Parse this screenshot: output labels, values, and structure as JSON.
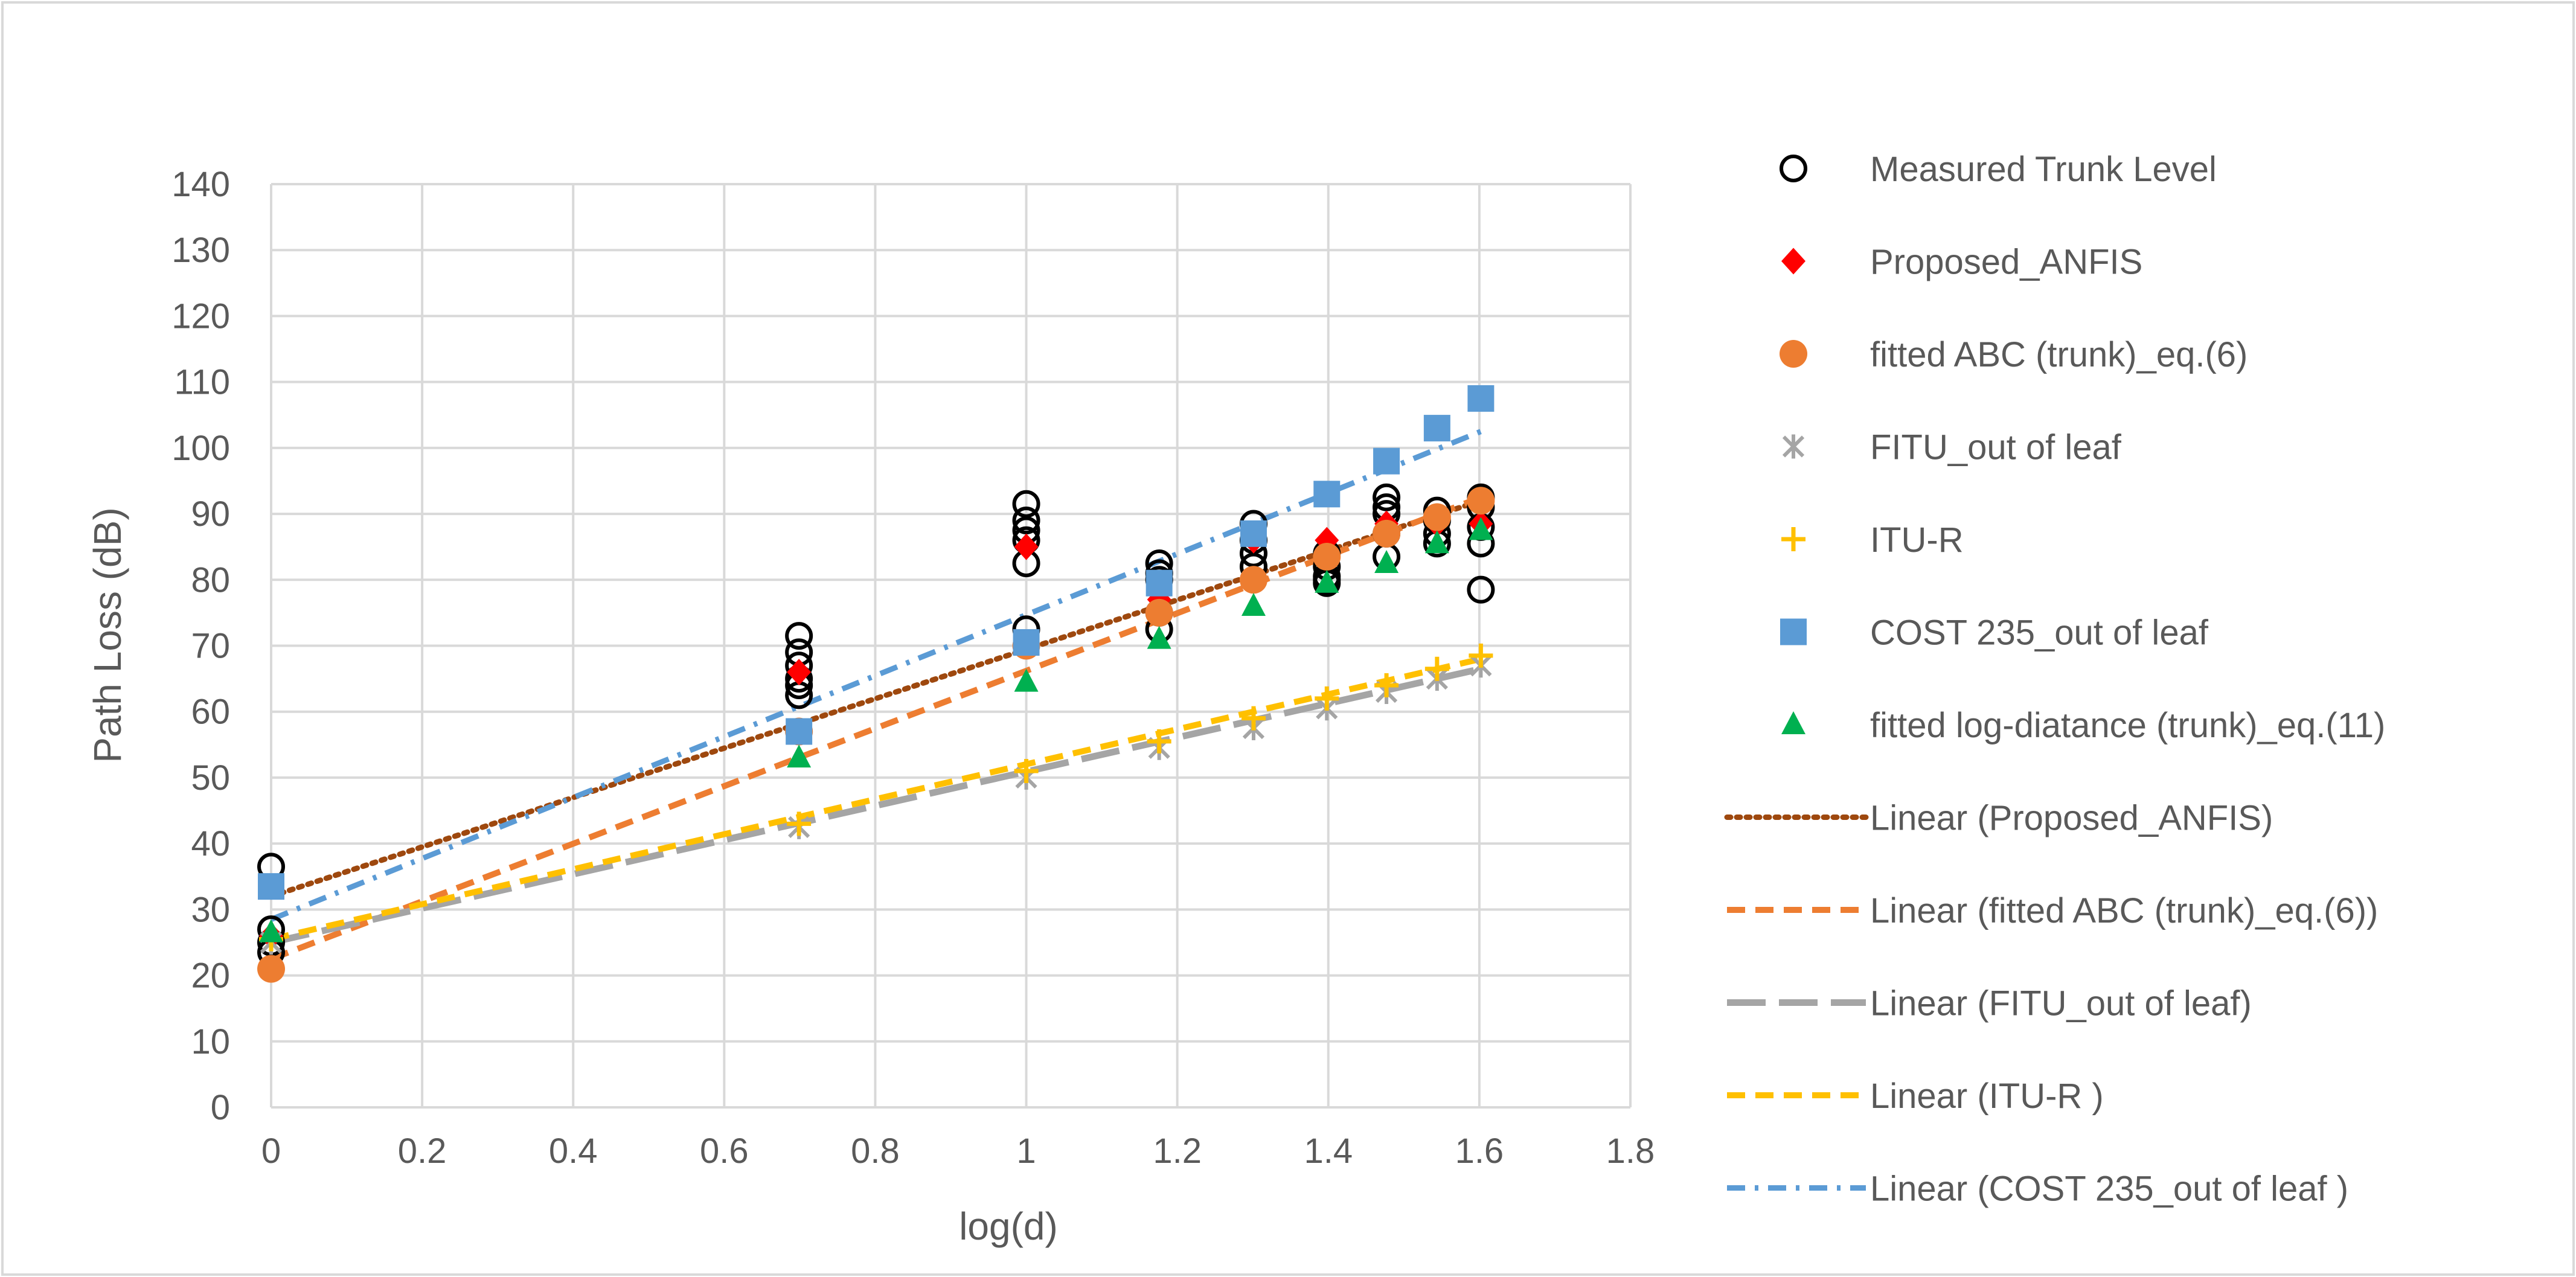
{
  "chart_data": {
    "type": "scatter",
    "xlabel": "log(d)",
    "ylabel": "Path Loss (dB)",
    "xlim": [
      0,
      1.8
    ],
    "ylim": [
      0,
      140
    ],
    "x_ticks": [
      0,
      0.2,
      0.4,
      0.6,
      0.8,
      1,
      1.2,
      1.4,
      1.6,
      1.8
    ],
    "x_tick_labels": [
      "0",
      "0.2",
      "0.4",
      "0.6",
      "0.8",
      "1",
      "1.2",
      "1.4",
      "1.6",
      "1.8"
    ],
    "y_ticks": [
      0,
      10,
      20,
      30,
      40,
      50,
      60,
      70,
      80,
      90,
      100,
      110,
      120,
      130,
      140
    ],
    "y_tick_labels": [
      "0",
      "10",
      "20",
      "30",
      "40",
      "50",
      "60",
      "70",
      "80",
      "90",
      "100",
      "110",
      "120",
      "130",
      "140"
    ],
    "grid": true,
    "legend_position": "right",
    "series": [
      {
        "name": "Measured Trunk Level",
        "marker": "open-circle",
        "color": "#000000",
        "x": [
          0,
          0,
          0,
          0,
          0.699,
          0.699,
          0.699,
          0.699,
          0.699,
          0.699,
          1,
          1,
          1,
          1,
          1,
          1,
          1.176,
          1.176,
          1.176,
          1.176,
          1.176,
          1.301,
          1.301,
          1.301,
          1.301,
          1.398,
          1.398,
          1.398,
          1.398,
          1.398,
          1.477,
          1.477,
          1.477,
          1.477,
          1.477,
          1.544,
          1.544,
          1.544,
          1.544,
          1.602,
          1.602,
          1.602,
          1.602,
          1.602
        ],
        "y": [
          36.5,
          27,
          25,
          23.5,
          71.5,
          69,
          67,
          65,
          64,
          62.5,
          91.5,
          89,
          87.5,
          86,
          82.5,
          72.5,
          82.5,
          81,
          80,
          75,
          72.5,
          88.5,
          86,
          84,
          82,
          84,
          82,
          80.5,
          80,
          79.5,
          92.5,
          91,
          90,
          87,
          83.5,
          90.5,
          89,
          87,
          85.5,
          92.5,
          91,
          88,
          85.5,
          78.5
        ]
      },
      {
        "name": "Proposed_ANFIS",
        "marker": "diamond",
        "color": "#ff0000",
        "x": [
          0,
          0.699,
          1,
          1.176,
          1.301,
          1.398,
          1.477,
          1.544,
          1.602
        ],
        "y": [
          26,
          66,
          85,
          77,
          86,
          86,
          88.5,
          88.5,
          88.5
        ]
      },
      {
        "name": "fitted ABC (trunk)_eq.(6)",
        "marker": "circle",
        "color": "#ed7d31",
        "x": [
          0,
          0.699,
          1,
          1.176,
          1.301,
          1.398,
          1.477,
          1.544,
          1.602
        ],
        "y": [
          21,
          57,
          70,
          75,
          80,
          83.5,
          87,
          89.5,
          92
        ]
      },
      {
        "name": "FITU_out of leaf",
        "marker": "x",
        "color": "#a5a5a5",
        "x": [
          0,
          0.699,
          1,
          1.176,
          1.301,
          1.398,
          1.477,
          1.544,
          1.602
        ],
        "y": [
          25,
          42.5,
          50,
          54.5,
          57.5,
          60.5,
          63,
          65,
          67
        ]
      },
      {
        "name": "ITU-R",
        "marker": "plus",
        "color": "#ffc000",
        "x": [
          0,
          0.699,
          1,
          1.176,
          1.301,
          1.398,
          1.477,
          1.544,
          1.602
        ],
        "y": [
          25.5,
          43,
          51,
          55.5,
          59,
          62,
          64,
          66.5,
          68.5
        ]
      },
      {
        "name": "COST 235_out of leaf",
        "marker": "square",
        "color": "#5b9bd5",
        "x": [
          0,
          0.699,
          1,
          1.176,
          1.301,
          1.398,
          1.477,
          1.544,
          1.602
        ],
        "y": [
          33.5,
          57,
          70.5,
          79.5,
          87,
          93,
          98,
          103,
          107.5
        ]
      },
      {
        "name": "fitted log-diatance (trunk)_eq.(11)",
        "marker": "triangle",
        "color": "#00b050",
        "x": [
          0,
          0.699,
          1,
          1.176,
          1.301,
          1.398,
          1.477,
          1.544,
          1.602
        ],
        "y": [
          26.5,
          53,
          64.5,
          71,
          76,
          79.5,
          82.5,
          85.5,
          87.5
        ]
      }
    ],
    "trendlines": [
      {
        "name": "Linear (Proposed_ANFIS)",
        "style": "dotted",
        "color": "#9e480e",
        "x": [
          0,
          1.602
        ],
        "y": [
          32,
          92
        ]
      },
      {
        "name": "Linear (fitted ABC (trunk)_eq.(6))",
        "style": "dashed",
        "color": "#ed7d31",
        "x": [
          0,
          1.602
        ],
        "y": [
          22.5,
          92.5
        ]
      },
      {
        "name": "Linear (FITU_out of leaf)",
        "style": "long-dash",
        "color": "#a5a5a5",
        "x": [
          0,
          1.602
        ],
        "y": [
          25,
          66.5
        ]
      },
      {
        "name": "Linear (ITU-R )",
        "style": "dashed",
        "color": "#ffc000",
        "x": [
          0,
          1.602
        ],
        "y": [
          25.5,
          68
        ]
      },
      {
        "name": "Linear (COST 235_out of leaf )",
        "style": "dash-dot",
        "color": "#5b9bd5",
        "x": [
          0,
          1.602
        ],
        "y": [
          28.5,
          102.5
        ]
      }
    ]
  }
}
